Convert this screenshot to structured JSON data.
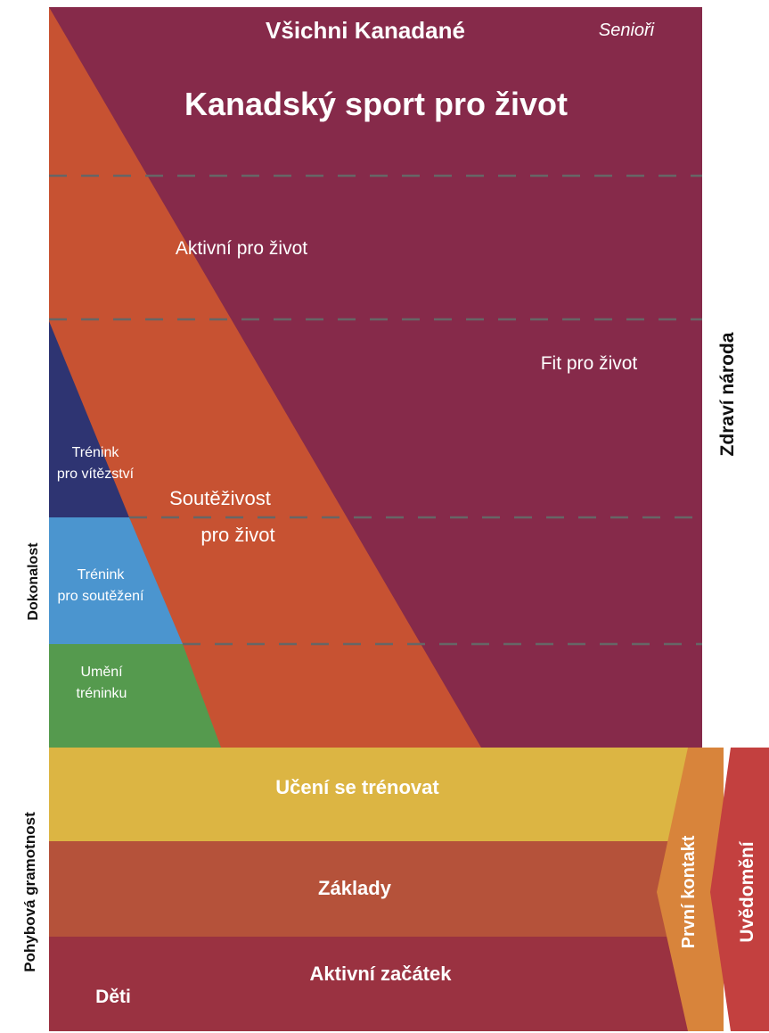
{
  "colors": {
    "plum": "#862a4a",
    "orange": "#c75232",
    "navy": "#2e3472",
    "sky": "#4b95cf",
    "green": "#559a4e",
    "yellow": "#dcb543",
    "rust": "#b5523a",
    "brick": "#9a3241",
    "amber": "#d8843b",
    "red": "#c3403f",
    "dash": "#666666"
  },
  "labels": {
    "all_canadians": "Všichni Kanadané",
    "seniors": "Senioři",
    "main_title": "Kanadský sport pro život",
    "active_for_life": "Aktivní pro život",
    "fit_for_life": "Fit pro život",
    "competitive_line1": "Soutěživost",
    "competitive_line2": "pro život",
    "train_to_win_line1": "Trénink",
    "train_to_win_line2": "pro vítězství",
    "train_to_compete_line1": "Trénink",
    "train_to_compete_line2": "pro soutěžení",
    "learn_train_line1": "Umění",
    "learn_train_line2": "tréninku",
    "learn_to_train": "Učení se trénovat",
    "fundamentals": "Základy",
    "active_start": "Aktivní začátek",
    "children": "Děti",
    "excellence": "Dokonalost",
    "physical_literacy": "Pohybová gramotnost",
    "health_of_nation": "Zdraví národa",
    "first_contact": "První kontakt",
    "awareness": "Uvědomění"
  }
}
